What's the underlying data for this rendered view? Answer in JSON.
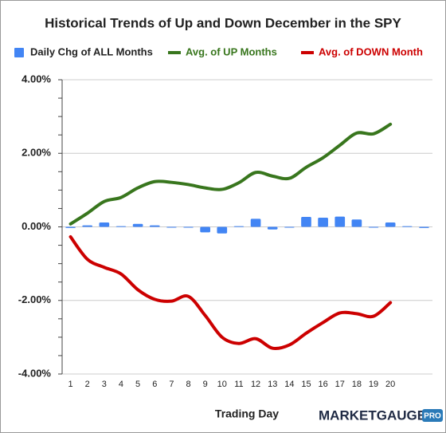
{
  "chart_data": {
    "type": "bar_line",
    "title": "Historical Trends of Up and Down December in the SPY",
    "x_label": "Trading Day",
    "logo": "MARKETGAUGE",
    "logo_badge": "PRO",
    "categories": [
      "1",
      "2",
      "3",
      "4",
      "5",
      "6",
      "7",
      "8",
      "9",
      "10",
      "11",
      "12",
      "13",
      "14",
      "15",
      "16",
      "17",
      "18",
      "19",
      "20",
      null,
      null
    ],
    "series": [
      {
        "name": "Daily Chg of ALL Months",
        "kind": "bar",
        "color": "#4285f4",
        "values": [
          -0.03,
          0.04,
          0.12,
          0.02,
          0.08,
          0.04,
          0,
          -0.01,
          -0.15,
          -0.18,
          0.02,
          0.22,
          -0.07,
          -0.01,
          0.27,
          0.25,
          0.28,
          0.2,
          0,
          0.12,
          0.02,
          -0.03
        ]
      },
      {
        "name": "Avg. of UP Months",
        "kind": "line",
        "color": "#38761d",
        "values": [
          0.08,
          0.37,
          0.69,
          0.8,
          1.06,
          1.23,
          1.21,
          1.15,
          1.06,
          1.02,
          1.2,
          1.48,
          1.38,
          1.32,
          1.62,
          1.88,
          2.22,
          2.55,
          2.53,
          2.79,
          null,
          null
        ]
      },
      {
        "name": "Avg. of DOWN Month",
        "kind": "line",
        "color": "#cc0000",
        "values": [
          -0.27,
          -0.88,
          -1.1,
          -1.28,
          -1.71,
          -1.97,
          -2.02,
          -1.89,
          -2.41,
          -3.0,
          -3.17,
          -3.04,
          -3.3,
          -3.21,
          -2.89,
          -2.6,
          -2.34,
          -2.36,
          -2.43,
          -2.06,
          null,
          null
        ]
      }
    ],
    "ylim": [
      -4,
      4
    ],
    "yticks": [
      {
        "value": -4,
        "label": "-4.00%"
      },
      {
        "value": -2,
        "label": "-2.00%"
      },
      {
        "value": 0,
        "label": "0.00%"
      },
      {
        "value": 2,
        "label": "2.00%"
      },
      {
        "value": 4,
        "label": "4.00%"
      }
    ],
    "grid": true
  }
}
